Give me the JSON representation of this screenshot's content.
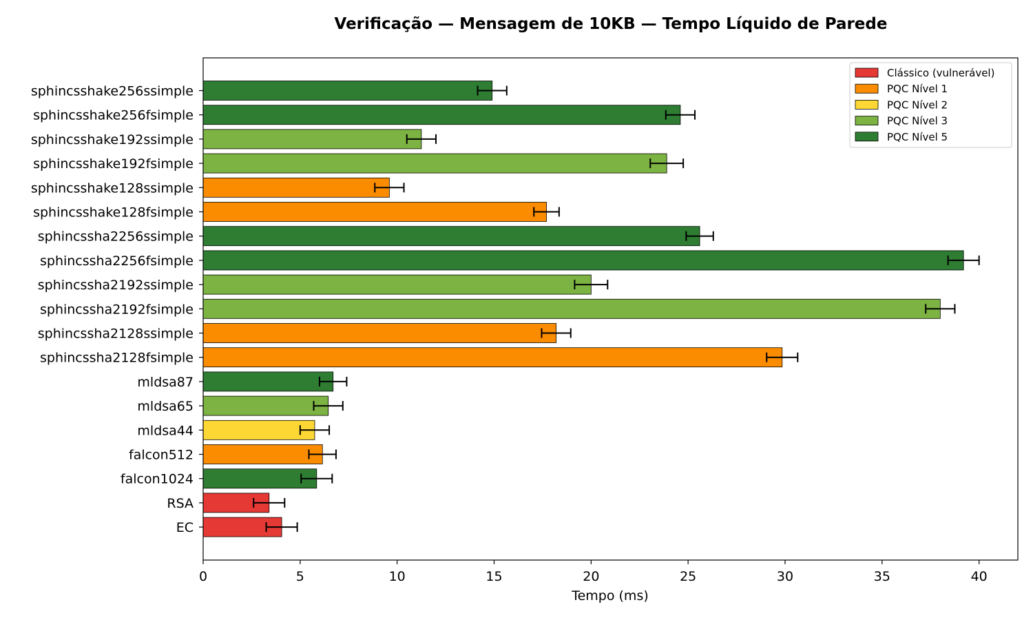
{
  "chart_data": {
    "type": "bar",
    "orientation": "horizontal",
    "title": "Verificação — Mensagem de 10KB — Tempo Líquido de Parede",
    "xlabel": "Tempo (ms)",
    "ylabel": "",
    "xlim": [
      0,
      42
    ],
    "xticks": [
      0,
      5,
      10,
      15,
      20,
      25,
      30,
      35,
      40
    ],
    "grid": false,
    "legend_position": "top-right",
    "legend": [
      {
        "label": "Clássico (vulnerável)",
        "color": "#e53935"
      },
      {
        "label": "PQC Nível 1",
        "color": "#fb8c00"
      },
      {
        "label": "PQC Nível 2",
        "color": "#fdd835"
      },
      {
        "label": "PQC Nível 3",
        "color": "#7cb342"
      },
      {
        "label": "PQC Nível 5",
        "color": "#2e7d32"
      }
    ],
    "bars": [
      {
        "label": "sphincsshake256ssimple",
        "value": 14.9,
        "error": 0.75,
        "group": 4
      },
      {
        "label": "sphincsshake256fsimple",
        "value": 24.6,
        "error": 0.75,
        "group": 4
      },
      {
        "label": "sphincsshake192ssimple",
        "value": 11.25,
        "error": 0.75,
        "group": 3
      },
      {
        "label": "sphincsshake192fsimple",
        "value": 23.9,
        "error": 0.85,
        "group": 3
      },
      {
        "label": "sphincsshake128ssimple",
        "value": 9.6,
        "error": 0.75,
        "group": 1
      },
      {
        "label": "sphincsshake128fsimple",
        "value": 17.7,
        "error": 0.65,
        "group": 1
      },
      {
        "label": "sphincssha2256ssimple",
        "value": 25.6,
        "error": 0.7,
        "group": 4
      },
      {
        "label": "sphincssha2256fsimple",
        "value": 39.2,
        "error": 0.8,
        "group": 4
      },
      {
        "label": "sphincssha2192ssimple",
        "value": 20.0,
        "error": 0.85,
        "group": 3
      },
      {
        "label": "sphincssha2192fsimple",
        "value": 38.0,
        "error": 0.75,
        "group": 3
      },
      {
        "label": "sphincssha2128ssimple",
        "value": 18.2,
        "error": 0.75,
        "group": 1
      },
      {
        "label": "sphincssha2128fsimple",
        "value": 29.85,
        "error": 0.8,
        "group": 1
      },
      {
        "label": "mldsa87",
        "value": 6.7,
        "error": 0.7,
        "group": 4
      },
      {
        "label": "mldsa65",
        "value": 6.45,
        "error": 0.75,
        "group": 3
      },
      {
        "label": "mldsa44",
        "value": 5.75,
        "error": 0.75,
        "group": 2
      },
      {
        "label": "falcon512",
        "value": 6.15,
        "error": 0.7,
        "group": 1
      },
      {
        "label": "falcon1024",
        "value": 5.85,
        "error": 0.8,
        "group": 4
      },
      {
        "label": "RSA",
        "value": 3.4,
        "error": 0.8,
        "group": 0
      },
      {
        "label": "EC",
        "value": 4.05,
        "error": 0.8,
        "group": 0
      }
    ]
  }
}
